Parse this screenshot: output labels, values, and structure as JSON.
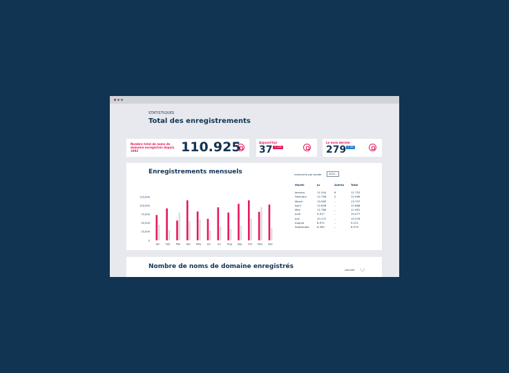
{
  "window": {
    "controls": [
      "close",
      "minimize",
      "maximize"
    ]
  },
  "header": {
    "eyebrow": "STATISTIQUES",
    "title": "Total des enregistrements"
  },
  "stats": {
    "total": {
      "label": "Nombre total de noms de domaine enregistrés depuis 1992",
      "value": "110.925",
      "icon": "document-icon"
    },
    "today": {
      "label": "Aujourd'hui",
      "value": "37",
      "badge": "+ 12%",
      "badge_color": "#e5195b",
      "icon": "fingerprint-icon"
    },
    "last_month": {
      "label": "Le mois dernier",
      "value": "279",
      "badge": "+ 3%",
      "badge_color": "#2a7fc6",
      "icon": "edit-icon"
    }
  },
  "monthly": {
    "title": "Enregistrements mensuels",
    "search_label": "recherche par année",
    "year": "2021",
    "columns": [
      "Month",
      "Ju",
      "Autres",
      "Total"
    ],
    "rows": [
      [
        "January",
        "11.544",
        "6",
        "11.753"
      ],
      [
        "February",
        "12.758",
        "2",
        "12.996"
      ],
      [
        "March",
        "13.585",
        "–",
        "13.757"
      ],
      [
        "April",
        "12.658",
        "–",
        "12.868"
      ],
      [
        "May",
        "11.766",
        "–",
        "11.961"
      ],
      [
        "June",
        "9.917",
        "–",
        "10.077"
      ],
      [
        "July",
        "10.172",
        "–",
        "10.339"
      ],
      [
        "August",
        "8.972",
        "–",
        "9.121"
      ],
      [
        "September",
        "6.365",
        "–",
        "6.579"
      ]
    ]
  },
  "domains": {
    "title": "Nombre de noms de domaine enregistrés",
    "refresh_label": "calculer"
  },
  "chart_data": {
    "type": "bar",
    "categories": [
      "Jan",
      "Feb",
      "Mar",
      "Apr",
      "May",
      "Jun",
      "Jul",
      "Aug",
      "Sep",
      "Oct",
      "Nov",
      "Dec"
    ],
    "series": [
      {
        "values": [
          73000,
          92000,
          57000,
          115000,
          83000,
          62000,
          95000,
          80000,
          105000,
          115000,
          82000,
          103000
        ],
        "color": "#e5195b"
      },
      {
        "values": [
          45000,
          30000,
          80000,
          55000,
          60000,
          28000,
          40000,
          33000,
          42000,
          62000,
          95000,
          35000
        ],
        "color": "#d8dce3"
      }
    ],
    "yticks": [
      "125,000",
      "100,000",
      "75,000",
      "50,000",
      "25,000",
      "0"
    ],
    "ylim": [
      0,
      125000
    ],
    "grid": false
  }
}
